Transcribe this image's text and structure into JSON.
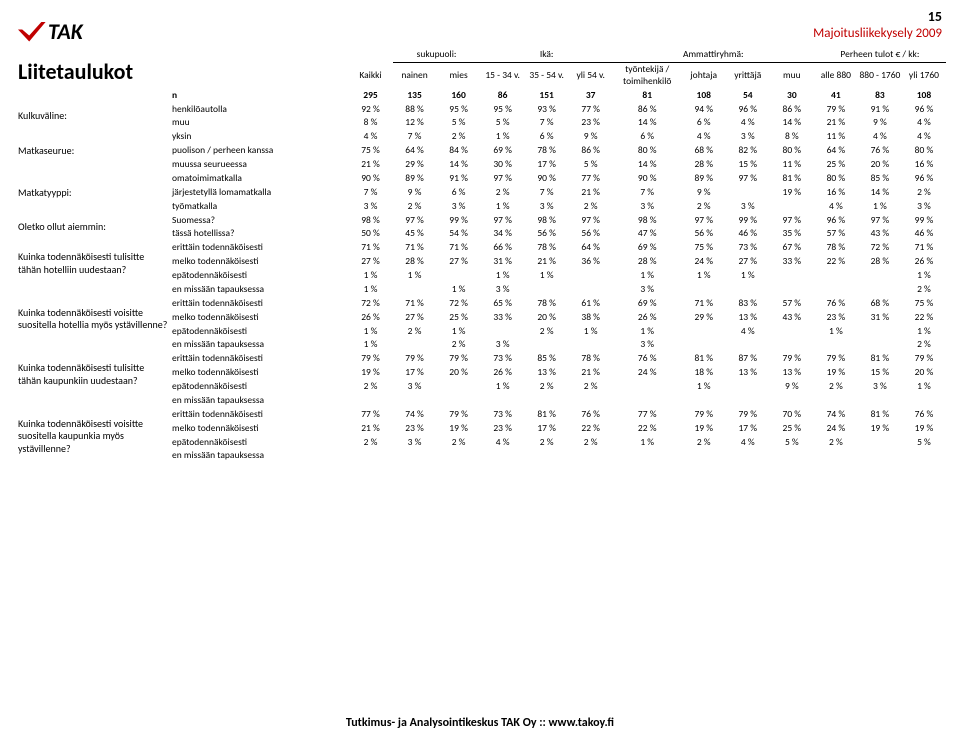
{
  "page_number": "15",
  "survey_title": "Majoitusliikekysely 2009",
  "logo_text": "TAK",
  "heading": "Liitetaulukot",
  "footer_prefix": "Tutkimus- ja Analysointikeskus TAK Oy :: ",
  "footer_link": "www.takoy.fi",
  "header_groups": [
    {
      "label": "",
      "span": 1
    },
    {
      "label": "",
      "span": 1
    },
    {
      "label": "sukupuoli:",
      "span": 2
    },
    {
      "label": "Ikä:",
      "span": 3
    },
    {
      "label": "Ammattiryhmä:",
      "span": 4
    },
    {
      "label": "Perheen tulot € / kk:",
      "span": 3
    }
  ],
  "header_cols": [
    "",
    "Kaikki",
    "nainen",
    "mies",
    "15 - 34 v.",
    "35 - 54 v.",
    "yli 54 v.",
    "työntekijä / toimihenkilö",
    "johtaja",
    "yrittäjä",
    "muu",
    "alle 880",
    "880 - 1760",
    "yli 1760"
  ],
  "n_row": [
    "n",
    "295",
    "135",
    "160",
    "86",
    "151",
    "37",
    "81",
    "108",
    "54",
    "30",
    "41",
    "83",
    "108"
  ],
  "groups": [
    {
      "title": "Kulkuväline:",
      "rows": [
        [
          "henkilöautolla",
          "92 %",
          "88 %",
          "95 %",
          "95 %",
          "93 %",
          "77 %",
          "86 %",
          "94 %",
          "96 %",
          "86 %",
          "79 %",
          "91 %",
          "96 %"
        ],
        [
          "muu",
          "8 %",
          "12 %",
          "5 %",
          "5 %",
          "7 %",
          "23 %",
          "14 %",
          "6 %",
          "4 %",
          "14 %",
          "21 %",
          "9 %",
          "4 %"
        ]
      ]
    },
    {
      "title": "Matkaseurue:",
      "rows": [
        [
          "yksin",
          "4 %",
          "7 %",
          "2 %",
          "1 %",
          "6 %",
          "9 %",
          "6 %",
          "4 %",
          "3 %",
          "8 %",
          "11 %",
          "4 %",
          "4 %"
        ],
        [
          "puolison / perheen kanssa",
          "75 %",
          "64 %",
          "84 %",
          "69 %",
          "78 %",
          "86 %",
          "80 %",
          "68 %",
          "82 %",
          "80 %",
          "64 %",
          "76 %",
          "80 %"
        ],
        [
          "muussa seurueessa",
          "21 %",
          "29 %",
          "14 %",
          "30 %",
          "17 %",
          "5 %",
          "14 %",
          "28 %",
          "15 %",
          "11 %",
          "25 %",
          "20 %",
          "16 %"
        ]
      ]
    },
    {
      "title": "Matkatyyppi:",
      "rows": [
        [
          "omatoimimatkalla",
          "90 %",
          "89 %",
          "91 %",
          "97 %",
          "90 %",
          "77 %",
          "90 %",
          "89 %",
          "97 %",
          "81 %",
          "80 %",
          "85 %",
          "96 %"
        ],
        [
          "järjestetyllä lomamatkalla",
          "7 %",
          "9 %",
          "6 %",
          "2 %",
          "7 %",
          "21 %",
          "7 %",
          "9 %",
          "",
          "19 %",
          "16 %",
          "14 %",
          "2 %"
        ],
        [
          "työmatkalla",
          "3 %",
          "2 %",
          "3 %",
          "1 %",
          "3 %",
          "2 %",
          "3 %",
          "2 %",
          "3 %",
          "",
          "4 %",
          "1 %",
          "3 %"
        ]
      ]
    },
    {
      "title": "Oletko ollut aiemmin:",
      "rows": [
        [
          "Suomessa?",
          "98 %",
          "97 %",
          "99 %",
          "97 %",
          "98 %",
          "97 %",
          "98 %",
          "97 %",
          "99 %",
          "97 %",
          "96 %",
          "97 %",
          "99 %"
        ],
        [
          "tässä hotellissa?",
          "50 %",
          "45 %",
          "54 %",
          "34 %",
          "56 %",
          "56 %",
          "47 %",
          "56 %",
          "46 %",
          "35 %",
          "57 %",
          "43 %",
          "46 %"
        ]
      ]
    },
    {
      "title": "Kuinka todennäköisesti tulisitte tähän hotelliin uudestaan?",
      "rows": [
        [
          "erittäin todennäköisesti",
          "71 %",
          "71 %",
          "71 %",
          "66 %",
          "78 %",
          "64 %",
          "69 %",
          "75 %",
          "73 %",
          "67 %",
          "78 %",
          "72 %",
          "71 %"
        ],
        [
          "melko todennäköisesti",
          "27 %",
          "28 %",
          "27 %",
          "31 %",
          "21 %",
          "36 %",
          "28 %",
          "24 %",
          "27 %",
          "33 %",
          "22 %",
          "28 %",
          "26 %"
        ],
        [
          "epätodennäköisesti",
          "1 %",
          "1 %",
          "",
          "1 %",
          "1 %",
          "",
          "1 %",
          "1 %",
          "1 %",
          "",
          "",
          "",
          "1 %"
        ],
        [
          "en missään tapauksessa",
          "1 %",
          "",
          "1 %",
          "3 %",
          "",
          "",
          "3 %",
          "",
          "",
          "",
          "",
          "",
          "2 %"
        ]
      ]
    },
    {
      "title": "Kuinka todennäköisesti voisitte suositella hotellia myös ystävillenne?",
      "rows": [
        [
          "erittäin todennäköisesti",
          "72 %",
          "71 %",
          "72 %",
          "65 %",
          "78 %",
          "61 %",
          "69 %",
          "71 %",
          "83 %",
          "57 %",
          "76 %",
          "68 %",
          "75 %"
        ],
        [
          "melko todennäköisesti",
          "26 %",
          "27 %",
          "25 %",
          "33 %",
          "20 %",
          "38 %",
          "26 %",
          "29 %",
          "13 %",
          "43 %",
          "23 %",
          "31 %",
          "22 %"
        ],
        [
          "epätodennäköisesti",
          "1 %",
          "2 %",
          "1 %",
          "",
          "2 %",
          "1 %",
          "1 %",
          "",
          "4 %",
          "",
          "1 %",
          "",
          "1 %"
        ],
        [
          "en missään tapauksessa",
          "1 %",
          "",
          "2 %",
          "3 %",
          "",
          "",
          "3 %",
          "",
          "",
          "",
          "",
          "",
          "2 %"
        ]
      ]
    },
    {
      "title": "Kuinka todennäköisesti tulisitte tähän kaupunkiin uudestaan?",
      "rows": [
        [
          "erittäin todennäköisesti",
          "79 %",
          "79 %",
          "79 %",
          "73 %",
          "85 %",
          "78 %",
          "76 %",
          "81 %",
          "87 %",
          "79 %",
          "79 %",
          "81 %",
          "79 %"
        ],
        [
          "melko todennäköisesti",
          "19 %",
          "17 %",
          "20 %",
          "26 %",
          "13 %",
          "21 %",
          "24 %",
          "18 %",
          "13 %",
          "13 %",
          "19 %",
          "15 %",
          "20 %"
        ],
        [
          "epätodennäköisesti",
          "2 %",
          "3 %",
          "",
          "1 %",
          "2 %",
          "2 %",
          "",
          "1 %",
          "",
          "9 %",
          "2 %",
          "3 %",
          "1 %"
        ],
        [
          "en missään tapauksessa",
          "",
          "",
          "",
          "",
          "",
          "",
          "",
          "",
          "",
          "",
          "",
          "",
          ""
        ]
      ]
    },
    {
      "title": "Kuinka todennäköisesti voisitte suositella kaupunkia myös ystävillenne?",
      "rows": [
        [
          "erittäin todennäköisesti",
          "77 %",
          "74 %",
          "79 %",
          "73 %",
          "81 %",
          "76 %",
          "77 %",
          "79 %",
          "79 %",
          "70 %",
          "74 %",
          "81 %",
          "76 %"
        ],
        [
          "melko todennäköisesti",
          "21 %",
          "23 %",
          "19 %",
          "23 %",
          "17 %",
          "22 %",
          "22 %",
          "19 %",
          "17 %",
          "25 %",
          "24 %",
          "19 %",
          "19 %"
        ],
        [
          "epätodennäköisesti",
          "2 %",
          "3 %",
          "2 %",
          "4 %",
          "2 %",
          "2 %",
          "1 %",
          "2 %",
          "4 %",
          "5 %",
          "2 %",
          "",
          "5 %"
        ],
        [
          "en missään tapauksessa",
          "",
          "",
          "",
          "",
          "",
          "",
          "",
          "",
          "",
          "",
          "",
          "",
          ""
        ]
      ]
    }
  ]
}
